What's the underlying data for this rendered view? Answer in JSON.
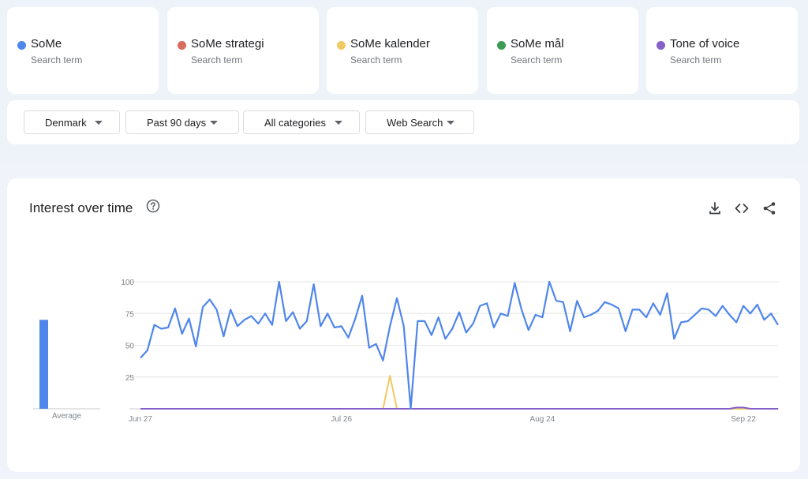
{
  "search_terms": [
    {
      "label": "SoMe",
      "sublabel": "Search term",
      "color": "#4f86ec"
    },
    {
      "label": "SoMe strategi",
      "sublabel": "Search term",
      "color": "#d96c5f"
    },
    {
      "label": "SoMe kalender",
      "sublabel": "Search term",
      "color": "#f1c962"
    },
    {
      "label": "SoMe mål",
      "sublabel": "Search term",
      "color": "#3e9b55"
    },
    {
      "label": "Tone of voice",
      "sublabel": "Search term",
      "color": "#8660c9"
    }
  ],
  "filters": [
    {
      "label": "Denmark"
    },
    {
      "label": "Past 90 days"
    },
    {
      "label": "All categories"
    },
    {
      "label": "Web Search"
    }
  ],
  "panel": {
    "title": "Interest over time",
    "icons": [
      "help-icon",
      "download-icon",
      "embed-code-icon",
      "share-icon"
    ]
  },
  "chart_data": {
    "type": "line",
    "title": "",
    "xlabel": "",
    "ylabel": "",
    "ylim": [
      0,
      100
    ],
    "yticks": [
      25,
      50,
      75,
      100
    ],
    "grid": true,
    "x_tick_labels": [
      {
        "label": "Jun 27",
        "index": 0
      },
      {
        "label": "Jul 26",
        "index": 29
      },
      {
        "label": "Aug 24",
        "index": 58
      },
      {
        "label": "Sep 22",
        "index": 87
      }
    ],
    "average_bars": {
      "label": "Average",
      "values": [
        70,
        0,
        0,
        0,
        0
      ]
    },
    "series": [
      {
        "color": "#4f86ec",
        "values": [
          40,
          46,
          66,
          63,
          64,
          79,
          59,
          71,
          49,
          80,
          86,
          78,
          57,
          78,
          65,
          70,
          73,
          67,
          75,
          66,
          100,
          69,
          76,
          63,
          69,
          98,
          65,
          75,
          64,
          65,
          56,
          71,
          89,
          48,
          51,
          38,
          65,
          87,
          65,
          0,
          69,
          69,
          58,
          72,
          55,
          63,
          76,
          60,
          67,
          81,
          83,
          64,
          75,
          73,
          99,
          78,
          62,
          74,
          72,
          100,
          85,
          84,
          61,
          85,
          72,
          74,
          77,
          84,
          82,
          79,
          61,
          78,
          78,
          72,
          83,
          74,
          91,
          55,
          68,
          69,
          74,
          79,
          78,
          73,
          81,
          74,
          68,
          81,
          75,
          82,
          70,
          75,
          66
        ]
      },
      {
        "color": "#d96c5f",
        "values": [
          0,
          0,
          0,
          0,
          0,
          0,
          0,
          0,
          0,
          0,
          0,
          0,
          0,
          0,
          0,
          0,
          0,
          0,
          0,
          0,
          0,
          0,
          0,
          0,
          0,
          0,
          0,
          0,
          0,
          0,
          0,
          0,
          0,
          0,
          0,
          0,
          0,
          0,
          0,
          0,
          0,
          0,
          0,
          0,
          0,
          0,
          0,
          0,
          0,
          0,
          0,
          0,
          0,
          0,
          0,
          0,
          0,
          0,
          0,
          0,
          0,
          0,
          0,
          0,
          0,
          0,
          0,
          0,
          0,
          0,
          0,
          0,
          0,
          0,
          0,
          0,
          0,
          0,
          0,
          0,
          0,
          0,
          0,
          0,
          0,
          0,
          0,
          0,
          0,
          0,
          0,
          0,
          0
        ]
      },
      {
        "color": "#f1c962",
        "values": [
          0,
          0,
          0,
          0,
          0,
          0,
          0,
          0,
          0,
          0,
          0,
          0,
          0,
          0,
          0,
          0,
          0,
          0,
          0,
          0,
          0,
          0,
          0,
          0,
          0,
          0,
          0,
          0,
          0,
          0,
          0,
          0,
          0,
          0,
          0,
          0,
          26,
          0,
          0,
          0,
          0,
          0,
          0,
          0,
          0,
          0,
          0,
          0,
          0,
          0,
          0,
          0,
          0,
          0,
          0,
          0,
          0,
          0,
          0,
          0,
          0,
          0,
          0,
          0,
          0,
          0,
          0,
          0,
          0,
          0,
          0,
          0,
          0,
          0,
          0,
          0,
          0,
          0,
          0,
          0,
          0,
          0,
          0,
          0,
          0,
          0,
          0,
          0,
          0,
          0,
          0,
          0,
          0
        ]
      },
      {
        "color": "#3e9b55",
        "values": [
          0,
          0,
          0,
          0,
          0,
          0,
          0,
          0,
          0,
          0,
          0,
          0,
          0,
          0,
          0,
          0,
          0,
          0,
          0,
          0,
          0,
          0,
          0,
          0,
          0,
          0,
          0,
          0,
          0,
          0,
          0,
          0,
          0,
          0,
          0,
          0,
          0,
          0,
          0,
          0,
          0,
          0,
          0,
          0,
          0,
          0,
          0,
          0,
          0,
          0,
          0,
          0,
          0,
          0,
          0,
          0,
          0,
          0,
          0,
          0,
          0,
          0,
          0,
          0,
          0,
          0,
          0,
          0,
          0,
          0,
          0,
          0,
          0,
          0,
          0,
          0,
          0,
          0,
          0,
          0,
          0,
          0,
          0,
          0,
          0,
          0,
          0,
          0,
          0,
          0,
          0,
          0,
          0
        ]
      },
      {
        "color": "#8660c9",
        "values": [
          0,
          0,
          0,
          0,
          0,
          0,
          0,
          0,
          0,
          0,
          0,
          0,
          0,
          0,
          0,
          0,
          0,
          0,
          0,
          0,
          0,
          0,
          0,
          0,
          0,
          0,
          0,
          0,
          0,
          0,
          0,
          0,
          0,
          0,
          0,
          0,
          0,
          0,
          0,
          0,
          0,
          0,
          0,
          0,
          0,
          0,
          0,
          0,
          0,
          0,
          0,
          0,
          0,
          0,
          0,
          0,
          0,
          0,
          0,
          0,
          0,
          0,
          0,
          0,
          0,
          0,
          0,
          0,
          0,
          0,
          0,
          0,
          0,
          0,
          0,
          0,
          0,
          0,
          0,
          0,
          0,
          0,
          0,
          0,
          0,
          0,
          1,
          1,
          0,
          0,
          0,
          0,
          0
        ]
      }
    ]
  }
}
